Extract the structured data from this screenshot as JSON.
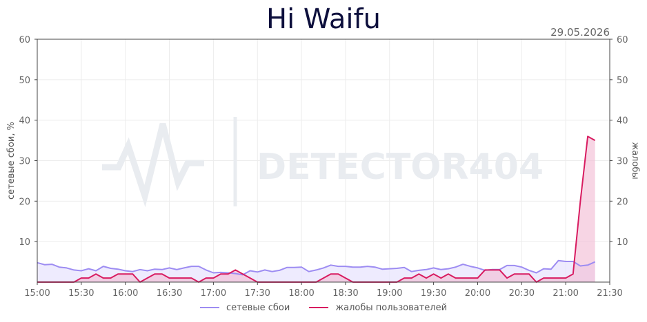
{
  "title": "Hi Waifu",
  "date": "29.05.2026",
  "watermark": "DETECTOR404",
  "chart_data": {
    "type": "line",
    "x": [
      "15:00",
      "15:05",
      "15:10",
      "15:15",
      "15:20",
      "15:25",
      "15:30",
      "15:35",
      "15:40",
      "15:45",
      "15:50",
      "15:55",
      "16:00",
      "16:05",
      "16:10",
      "16:15",
      "16:20",
      "16:25",
      "16:30",
      "16:35",
      "16:40",
      "16:45",
      "16:50",
      "16:55",
      "17:00",
      "17:05",
      "17:10",
      "17:15",
      "17:20",
      "17:25",
      "17:30",
      "17:35",
      "17:40",
      "17:45",
      "17:50",
      "17:55",
      "18:00",
      "18:05",
      "18:10",
      "18:15",
      "18:20",
      "18:25",
      "18:30",
      "18:35",
      "18:40",
      "18:45",
      "18:50",
      "18:55",
      "19:00",
      "19:05",
      "19:10",
      "19:15",
      "19:20",
      "19:25",
      "19:30",
      "19:35",
      "19:40",
      "19:45",
      "19:50",
      "19:55",
      "20:00",
      "20:05",
      "20:10",
      "20:15",
      "20:20",
      "20:25",
      "20:30",
      "20:35",
      "20:40",
      "20:45",
      "20:50",
      "20:55",
      "21:00",
      "21:05",
      "21:10",
      "21:15",
      "21:20"
    ],
    "x_ticks": [
      "15:00",
      "15:30",
      "16:00",
      "16:30",
      "17:00",
      "17:30",
      "18:00",
      "18:30",
      "19:00",
      "19:30",
      "20:00",
      "20:30",
      "21:00",
      "21:30"
    ],
    "xlim": [
      "15:00",
      "21:30"
    ],
    "series": [
      {
        "name": "сетевые сбои",
        "axis": "left",
        "color": "#9d8cf2",
        "fill": "#e8e4fd",
        "values": [
          4.8,
          4.3,
          4.4,
          3.7,
          3.5,
          3.0,
          2.8,
          3.3,
          2.8,
          3.9,
          3.4,
          3.2,
          2.8,
          2.6,
          3.1,
          2.8,
          3.2,
          3.1,
          3.5,
          3.1,
          3.5,
          3.9,
          3.9,
          3.0,
          2.3,
          2.4,
          2.3,
          2.1,
          1.8,
          2.8,
          2.5,
          3.0,
          2.6,
          2.9,
          3.6,
          3.6,
          3.7,
          2.6,
          3.0,
          3.5,
          4.2,
          3.9,
          3.9,
          3.7,
          3.7,
          3.9,
          3.7,
          3.2,
          3.3,
          3.4,
          3.6,
          2.6,
          2.9,
          3.1,
          3.5,
          3.1,
          3.3,
          3.7,
          4.4,
          3.9,
          3.5,
          2.9,
          3.1,
          3.1,
          4.1,
          4.1,
          3.7,
          2.9,
          2.3,
          3.3,
          3.2,
          5.3,
          5.1,
          5.1,
          4.0,
          4.2,
          5.0
        ]
      },
      {
        "name": "жалобы пользователей",
        "axis": "right",
        "color": "#d81b60",
        "fill": "#f2bfd6",
        "values": [
          0,
          0,
          0,
          0,
          0,
          0,
          1,
          1,
          2,
          1,
          1,
          2,
          2,
          2,
          0,
          1,
          2,
          2,
          1,
          1,
          1,
          1,
          0,
          1,
          1,
          2,
          2,
          3,
          2,
          1,
          0,
          0,
          0,
          0,
          0,
          0,
          0,
          0,
          0,
          1,
          2,
          2,
          1,
          0,
          0,
          0,
          0,
          0,
          0,
          0,
          1,
          1,
          2,
          1,
          2,
          1,
          2,
          1,
          1,
          1,
          1,
          3,
          3,
          3,
          1,
          2,
          2,
          2,
          0,
          1,
          1,
          1,
          1,
          2,
          20,
          36,
          35
        ]
      }
    ],
    "ylabel_left": "сетевые сбои, %",
    "ylabel_right": "жалобы",
    "ylim_left": [
      0,
      60
    ],
    "ylim_right": [
      0,
      60
    ],
    "y_ticks": [
      10,
      20,
      30,
      40,
      50,
      60
    ],
    "grid": true,
    "legend_position": "bottom-center"
  }
}
